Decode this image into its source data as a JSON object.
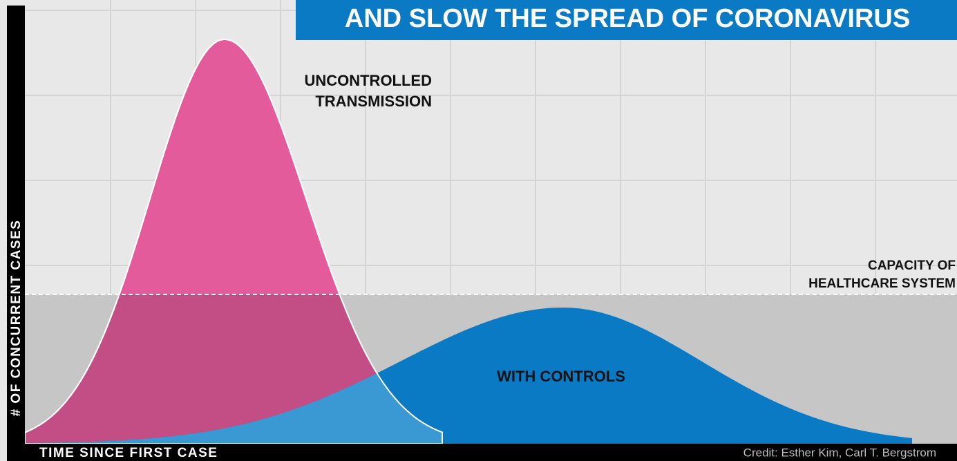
{
  "title": "AND SLOW THE SPREAD OF CORONAVIRUS",
  "curves": {
    "uncontrolled": [
      "UNCONTROLLED",
      "TRANSMISSION"
    ],
    "controlled": "WITH CONTROLS"
  },
  "capacity": [
    "CAPACITY OF",
    "HEALTHCARE SYSTEM"
  ],
  "axes": {
    "y": "# OF CONCURRENT CASES",
    "x": "TIME SINCE FIRST CASE"
  },
  "credit": "Credit: Esther Kim, Carl T. Bergstrom"
}
